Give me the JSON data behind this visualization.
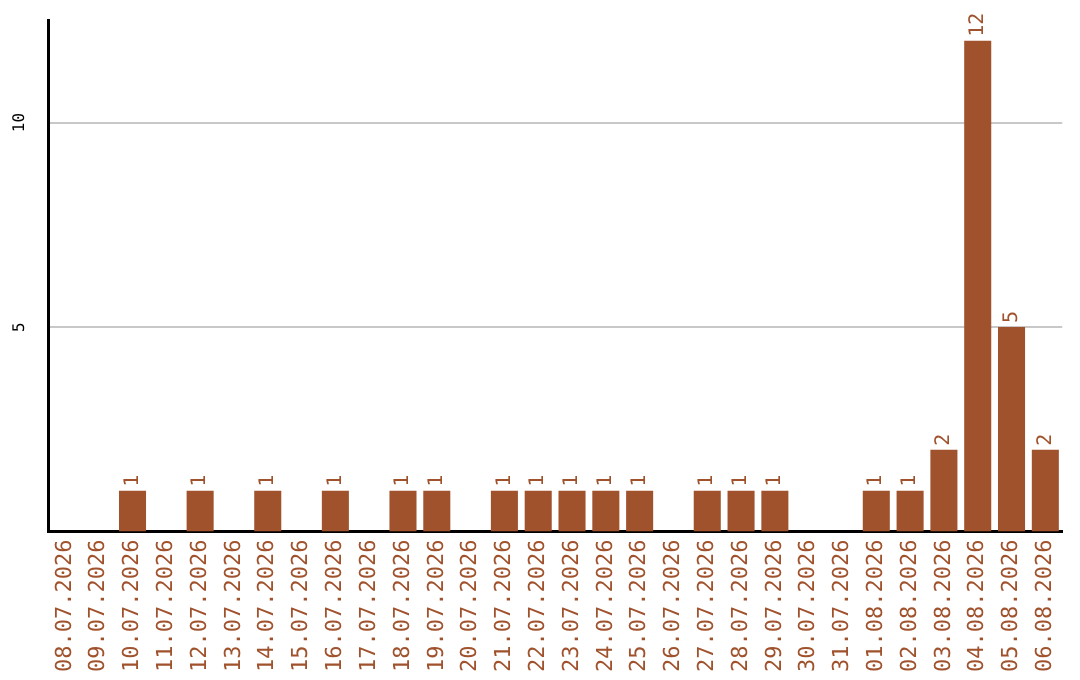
{
  "chart_data": {
    "type": "bar",
    "categories": [
      "08.07.2026",
      "09.07.2026",
      "10.07.2026",
      "11.07.2026",
      "12.07.2026",
      "13.07.2026",
      "14.07.2026",
      "15.07.2026",
      "16.07.2026",
      "17.07.2026",
      "18.07.2026",
      "19.07.2026",
      "20.07.2026",
      "21.07.2026",
      "22.07.2026",
      "23.07.2026",
      "24.07.2026",
      "25.07.2026",
      "26.07.2026",
      "27.07.2026",
      "28.07.2026",
      "29.07.2026",
      "30.07.2026",
      "31.07.2026",
      "01.08.2026",
      "02.08.2026",
      "03.08.2026",
      "04.08.2026",
      "05.08.2026",
      "06.08.2026"
    ],
    "values": [
      0,
      0,
      1,
      0,
      1,
      0,
      1,
      0,
      1,
      0,
      1,
      1,
      0,
      1,
      1,
      1,
      1,
      1,
      0,
      1,
      1,
      1,
      0,
      0,
      1,
      1,
      2,
      12,
      5,
      2
    ],
    "value_labels": [
      null,
      null,
      "1",
      null,
      "1",
      null,
      "1",
      null,
      "1",
      null,
      "1",
      "1",
      null,
      "1",
      "1",
      "1",
      "1",
      "1",
      null,
      "1",
      "1",
      "1",
      null,
      null,
      "1",
      "1",
      "2",
      "12",
      "5",
      "2"
    ],
    "color": "#a0522d",
    "ylim": [
      0,
      12.5
    ],
    "yticks": [
      5,
      10
    ],
    "grid": "y",
    "legend": false
  }
}
